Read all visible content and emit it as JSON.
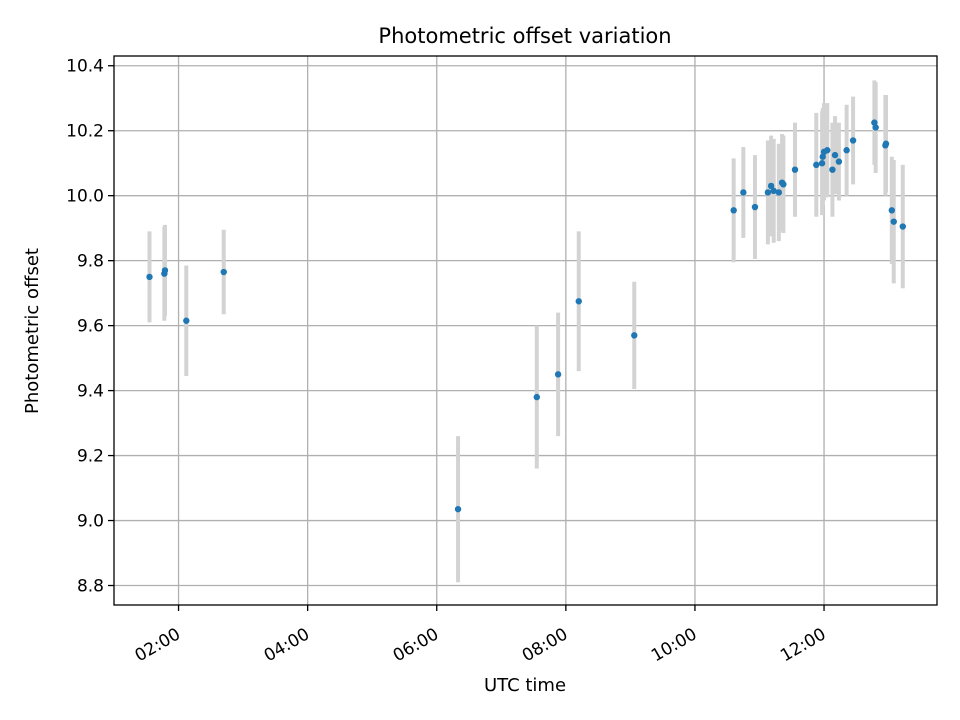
{
  "chart_data": {
    "type": "scatter",
    "title": "Photometric offset variation",
    "xlabel": "UTC time",
    "ylabel": "Photometric offset",
    "x_unit": "hours UTC",
    "xlim": [
      1.0,
      13.75
    ],
    "ylim": [
      8.74,
      10.43
    ],
    "x_ticks": [
      {
        "value": 2,
        "label": "02:00"
      },
      {
        "value": 4,
        "label": "04:00"
      },
      {
        "value": 6,
        "label": "06:00"
      },
      {
        "value": 8,
        "label": "08:00"
      },
      {
        "value": 10,
        "label": "10:00"
      },
      {
        "value": 12,
        "label": "12:00"
      }
    ],
    "y_ticks": [
      {
        "value": 8.8,
        "label": "8.8"
      },
      {
        "value": 9.0,
        "label": "9.0"
      },
      {
        "value": 9.2,
        "label": "9.2"
      },
      {
        "value": 9.4,
        "label": "9.4"
      },
      {
        "value": 9.6,
        "label": "9.6"
      },
      {
        "value": 9.8,
        "label": "9.8"
      },
      {
        "value": 10.0,
        "label": "10.0"
      },
      {
        "value": 10.2,
        "label": "10.2"
      },
      {
        "value": 10.4,
        "label": "10.4"
      }
    ],
    "grid": true,
    "colors": {
      "points": "#1f77b4",
      "errorbars": "#d3d3d3",
      "grid": "#b0b0b0"
    },
    "points": [
      {
        "x": 1.55,
        "y": 9.75,
        "err": 0.14
      },
      {
        "x": 1.78,
        "y": 9.76,
        "err": 0.145
      },
      {
        "x": 1.79,
        "y": 9.77,
        "err": 0.14
      },
      {
        "x": 2.12,
        "y": 9.615,
        "err": 0.17
      },
      {
        "x": 2.7,
        "y": 9.765,
        "err": 0.13
      },
      {
        "x": 6.33,
        "y": 9.035,
        "err": 0.225
      },
      {
        "x": 7.55,
        "y": 9.38,
        "err": 0.22
      },
      {
        "x": 7.88,
        "y": 9.45,
        "err": 0.19
      },
      {
        "x": 8.2,
        "y": 9.675,
        "err": 0.215
      },
      {
        "x": 9.06,
        "y": 9.57,
        "err": 0.165
      },
      {
        "x": 10.6,
        "y": 9.955,
        "err": 0.16
      },
      {
        "x": 10.75,
        "y": 10.01,
        "err": 0.14
      },
      {
        "x": 10.93,
        "y": 9.965,
        "err": 0.16
      },
      {
        "x": 11.13,
        "y": 10.01,
        "err": 0.16
      },
      {
        "x": 11.18,
        "y": 10.03,
        "err": 0.155
      },
      {
        "x": 11.22,
        "y": 10.015,
        "err": 0.16
      },
      {
        "x": 11.3,
        "y": 10.01,
        "err": 0.15
      },
      {
        "x": 11.35,
        "y": 10.04,
        "err": 0.15
      },
      {
        "x": 11.37,
        "y": 10.035,
        "err": 0.15
      },
      {
        "x": 11.55,
        "y": 10.08,
        "err": 0.145
      },
      {
        "x": 11.88,
        "y": 10.095,
        "err": 0.16
      },
      {
        "x": 11.97,
        "y": 10.1,
        "err": 0.16
      },
      {
        "x": 11.98,
        "y": 10.12,
        "err": 0.15
      },
      {
        "x": 12.0,
        "y": 10.135,
        "err": 0.15
      },
      {
        "x": 12.05,
        "y": 10.14,
        "err": 0.145
      },
      {
        "x": 12.13,
        "y": 10.08,
        "err": 0.145
      },
      {
        "x": 12.17,
        "y": 10.125,
        "err": 0.12
      },
      {
        "x": 12.23,
        "y": 10.105,
        "err": 0.12
      },
      {
        "x": 12.35,
        "y": 10.14,
        "err": 0.14
      },
      {
        "x": 12.45,
        "y": 10.17,
        "err": 0.135
      },
      {
        "x": 12.78,
        "y": 10.225,
        "err": 0.13
      },
      {
        "x": 12.8,
        "y": 10.21,
        "err": 0.14
      },
      {
        "x": 12.95,
        "y": 10.155,
        "err": 0.155
      },
      {
        "x": 12.96,
        "y": 10.16,
        "err": 0.15
      },
      {
        "x": 13.05,
        "y": 9.955,
        "err": 0.165
      },
      {
        "x": 13.08,
        "y": 9.92,
        "err": 0.19
      },
      {
        "x": 13.22,
        "y": 9.905,
        "err": 0.19
      }
    ]
  }
}
